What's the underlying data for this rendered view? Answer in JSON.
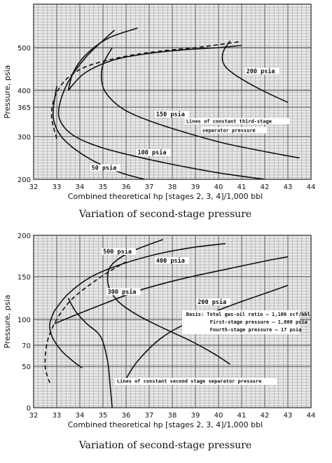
{
  "chart_data": [
    {
      "type": "line",
      "xlabel": "Combined theoretical hp [stages 2, 3, 4]/1,000 bbl",
      "ylabel": "Pressure, psia",
      "caption": "Variation of second-stage pressure",
      "xlim": [
        32,
        44
      ],
      "ylim": [
        200,
        520
      ],
      "x_ticks": [
        32,
        33,
        34,
        35,
        36,
        37,
        38,
        39,
        40,
        41,
        42,
        43,
        44
      ],
      "y_ticks": [
        200,
        300,
        365,
        400,
        500
      ],
      "grid": true,
      "annotations": [
        {
          "text": "Lines of constant third-stage",
          "x": 38.6,
          "y": 330
        },
        {
          "text": "separator pressure",
          "x": 39.3,
          "y": 310
        }
      ],
      "series": [
        {
          "name": "50 psia",
          "label_at": [
            34.5,
            222
          ],
          "style": "solid",
          "points": [
            [
              33.0,
              410
            ],
            [
              32.85,
              360
            ],
            [
              32.9,
              330
            ],
            [
              33.2,
              300
            ],
            [
              33.8,
              270
            ],
            [
              34.7,
              240
            ],
            [
              35.8,
              215
            ],
            [
              36.8,
              200
            ]
          ]
        },
        {
          "name": "100 psia",
          "label_at": [
            36.5,
            258
          ],
          "style": "solid",
          "points": [
            [
              35.5,
              540
            ],
            [
              34.3,
              480
            ],
            [
              33.5,
              420
            ],
            [
              33.1,
              365
            ],
            [
              33.2,
              330
            ],
            [
              33.8,
              300
            ],
            [
              34.9,
              275
            ],
            [
              36.3,
              255
            ],
            [
              38.0,
              235
            ],
            [
              40.0,
              215
            ],
            [
              42.0,
              200
            ]
          ]
        },
        {
          "name": "150 psia",
          "label_at": [
            37.3,
            345
          ],
          "style": "solid",
          "points": [
            [
              35.4,
              500
            ],
            [
              35.0,
              460
            ],
            [
              34.95,
              420
            ],
            [
              35.2,
              390
            ],
            [
              35.9,
              360
            ],
            [
              37.0,
              335
            ],
            [
              38.5,
              310
            ],
            [
              40.2,
              285
            ],
            [
              42.0,
              265
            ],
            [
              43.5,
              250
            ]
          ]
        },
        {
          "name": "200 psia",
          "label_at": [
            41.2,
            440
          ],
          "style": "solid",
          "points": [
            [
              40.5,
              515
            ],
            [
              40.2,
              490
            ],
            [
              40.2,
              465
            ],
            [
              40.5,
              445
            ],
            [
              41.2,
              420
            ],
            [
              42.1,
              395
            ],
            [
              43.0,
              375
            ]
          ]
        },
        {
          "name": "",
          "style": "solid",
          "points": [
            [
              33.5,
              400
            ],
            [
              33.7,
              440
            ],
            [
              34.2,
              480
            ],
            [
              35.2,
              520
            ],
            [
              36.5,
              545
            ]
          ]
        },
        {
          "name": "",
          "style": "solid",
          "points": [
            [
              33.5,
              400
            ],
            [
              34.2,
              440
            ],
            [
              35.4,
              470
            ],
            [
              36.8,
              485
            ],
            [
              38.5,
              495
            ],
            [
              40.0,
              500
            ],
            [
              41.0,
              505
            ]
          ]
        },
        {
          "name": "",
          "style": "dashed",
          "points": [
            [
              33.0,
              295
            ],
            [
              32.8,
              335
            ],
            [
              32.8,
              365
            ],
            [
              33.05,
              400
            ],
            [
              33.6,
              435
            ],
            [
              34.5,
              460
            ],
            [
              36.0,
              480
            ],
            [
              37.5,
              492
            ],
            [
              39.0,
              500
            ],
            [
              40.5,
              510
            ],
            [
              41.0,
              514
            ]
          ]
        }
      ]
    },
    {
      "type": "line",
      "xlabel": "Combined theoretical hp [stages 2, 3, 4]/1,000 bbl",
      "ylabel": "Pressure, psia",
      "caption": "Variation of second-stage pressure",
      "xlim": [
        32,
        44
      ],
      "ylim": [
        0,
        200
      ],
      "x_ticks": [
        32,
        33,
        34,
        35,
        36,
        37,
        38,
        39,
        40,
        41,
        42,
        43,
        44
      ],
      "y_ticks": [
        0,
        50,
        70,
        100,
        150,
        200
      ],
      "grid": true,
      "notes": [
        "Basis: Total gas-oil ratio — 1,100 scf/bbl",
        "First-stage pressure — 1,000 psia",
        "Fourth-stage pressure — 17 psia",
        "Lines of constant second stage separator pressure"
      ],
      "series": [
        {
          "name": "500 psia",
          "label_at": [
            35.0,
            178
          ],
          "style": "solid",
          "points": [
            [
              32.9,
              110
            ],
            [
              32.7,
              95
            ],
            [
              32.8,
              80
            ],
            [
              33.2,
              65
            ],
            [
              33.7,
              55
            ],
            [
              34.1,
              48
            ]
          ]
        },
        {
          "name": "400 psia",
          "label_at": [
            37.3,
            167
          ],
          "style": "solid",
          "points": [
            [
              37.6,
              195
            ],
            [
              36.2,
              180
            ],
            [
              35.4,
              165
            ],
            [
              35.2,
              150
            ],
            [
              35.3,
              135
            ],
            [
              35.7,
              120
            ],
            [
              36.5,
              105
            ],
            [
              37.6,
              90
            ],
            [
              38.8,
              75
            ],
            [
              39.8,
              62
            ],
            [
              40.5,
              52
            ]
          ]
        },
        {
          "name": "300 psia",
          "label_at": [
            35.2,
            130
          ],
          "style": "solid",
          "points": [
            [
              33.5,
              125
            ],
            [
              33.8,
              110
            ],
            [
              34.3,
              95
            ],
            [
              34.9,
              80
            ],
            [
              35.2,
              55
            ],
            [
              35.3,
              30
            ],
            [
              35.4,
              0
            ]
          ]
        },
        {
          "name": "200 psia",
          "label_at": [
            39.1,
            118
          ],
          "style": "solid",
          "points": [
            [
              35.9,
              30
            ],
            [
              36.5,
              55
            ],
            [
              37.6,
              80
            ],
            [
              39.0,
              100
            ],
            [
              40.7,
              118
            ],
            [
              42.5,
              135
            ],
            [
              43.0,
              140
            ]
          ]
        },
        {
          "name": "",
          "style": "solid",
          "points": [
            [
              32.9,
              110
            ],
            [
              33.5,
              130
            ],
            [
              34.5,
              150
            ],
            [
              35.8,
              165
            ],
            [
              37.3,
              177
            ],
            [
              38.8,
              185
            ],
            [
              40.3,
              190
            ]
          ]
        },
        {
          "name": "",
          "style": "solid",
          "points": [
            [
              32.9,
              95
            ],
            [
              33.8,
              105
            ],
            [
              35.2,
              120
            ],
            [
              36.7,
              135
            ],
            [
              38.5,
              148
            ],
            [
              40.5,
              160
            ],
            [
              42.2,
              170
            ],
            [
              43.0,
              174
            ]
          ]
        },
        {
          "name": "",
          "style": "dashed",
          "points": [
            [
              32.7,
              30
            ],
            [
              32.5,
              50
            ],
            [
              32.6,
              75
            ],
            [
              33.0,
              100
            ],
            [
              33.6,
              122
            ],
            [
              34.4,
              140
            ],
            [
              35.2,
              155
            ],
            [
              36.0,
              168
            ]
          ]
        }
      ]
    }
  ]
}
